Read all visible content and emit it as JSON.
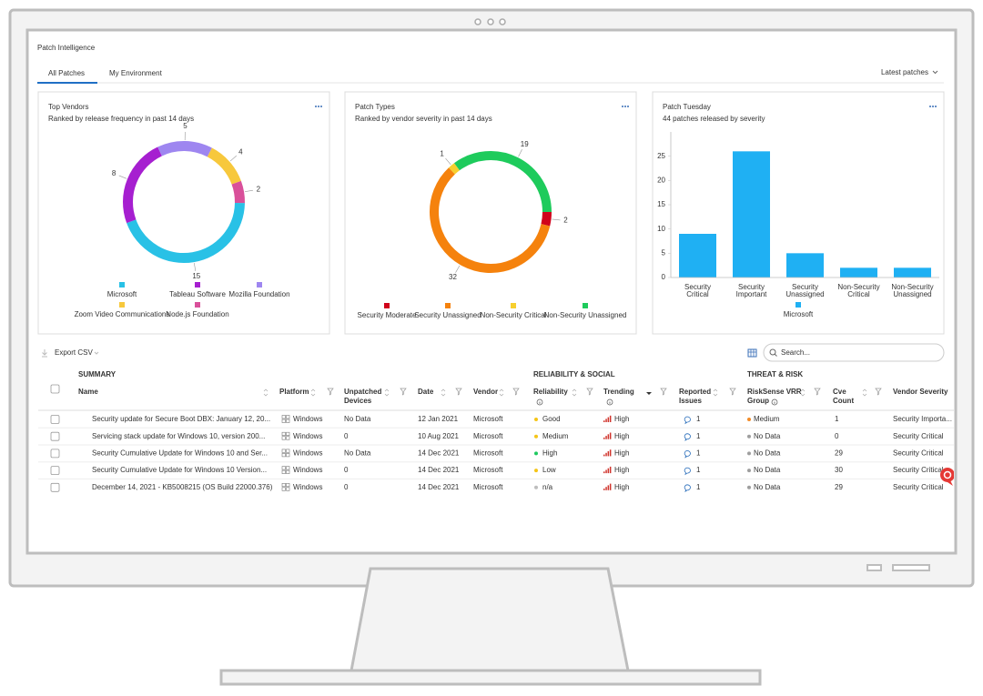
{
  "header": {
    "title": "Patch Intelligence",
    "tabs": [
      "All Patches",
      "My Environment"
    ],
    "filter": "Latest patches"
  },
  "chart_data": [
    {
      "type": "pie",
      "donut": true,
      "title": "Top Vendors",
      "subtitle": "Ranked by release frequency in past 14 days",
      "categories": [
        "Microsoft",
        "Tableau Software",
        "Mozilla Foundation",
        "Zoom Video Communications",
        "Node.js Foundation"
      ],
      "values": [
        15,
        8,
        5,
        4,
        2
      ],
      "colors": [
        "#29c1e6",
        "#a61fd0",
        "#9e86f0",
        "#f7c83c",
        "#d9509a"
      ]
    },
    {
      "type": "pie",
      "donut": true,
      "title": "Patch Types",
      "subtitle": "Ranked by vendor severity in past 14 days",
      "categories": [
        "Security Moderate",
        "Security Unassigned",
        "Non-Security Critical",
        "Non-Security Unassigned"
      ],
      "values": [
        2,
        32,
        1,
        19
      ],
      "colors": [
        "#d0021b",
        "#f5820d",
        "#f7cf2e",
        "#1ecb5c"
      ]
    },
    {
      "type": "bar",
      "title": "Patch Tuesday",
      "subtitle": "44 patches released by severity",
      "categories": [
        "Security Critical",
        "Security Important",
        "Security Unassigned",
        "Non-Security Critical",
        "Non-Security Unassigned"
      ],
      "series": [
        {
          "name": "Microsoft",
          "color": "#1fb0f3",
          "values": [
            9,
            26,
            5,
            2,
            2
          ]
        }
      ],
      "ylim": [
        0,
        30
      ],
      "yticks": [
        0,
        5,
        10,
        15,
        20,
        25
      ],
      "grid": false
    }
  ],
  "toolbar": {
    "export": "Export CSV",
    "search": "Search..."
  },
  "table": {
    "groups": [
      "SUMMARY",
      "RELIABILITY & SOCIAL",
      "THREAT & RISK"
    ],
    "columns": [
      "Name",
      "Platform",
      "Unpatched Devices",
      "Date",
      "Vendor",
      "Reliability",
      "Trending",
      "Reported Issues",
      "RiskSense VRR Group",
      "Cve Count",
      "Vendor Severity"
    ],
    "rows": [
      [
        "Security update for Secure Boot DBX: January 12, 20...",
        "Windows",
        "No Data",
        "12 Jan 2021",
        "Microsoft",
        "Good",
        "High",
        1,
        "Medium",
        1,
        "Security Importa..."
      ],
      [
        "Servicing stack update for Windows 10, version 200...",
        "Windows",
        0,
        "10 Aug 2021",
        "Microsoft",
        "Medium",
        "High",
        1,
        "No Data",
        0,
        "Security Critical"
      ],
      [
        "Security Cumulative Update for Windows 10 and Ser...",
        "Windows",
        "No Data",
        "14 Dec 2021",
        "Microsoft",
        "High",
        "High",
        1,
        "No Data",
        29,
        "Security Critical"
      ],
      [
        "Security Cumulative Update for Windows 10 Version...",
        "Windows",
        0,
        "14 Dec 2021",
        "Microsoft",
        "Low",
        "High",
        1,
        "No Data",
        30,
        "Security Critical"
      ],
      [
        "December 14, 2021 - KB5008215 (OS Build 22000.376)",
        "Windows",
        0,
        "14 Dec 2021",
        "Microsoft",
        "n/a",
        "High",
        1,
        "No Data",
        29,
        "Security Critical"
      ]
    ],
    "row_dots": [
      [
        "#f5c518",
        "#f28c28"
      ],
      [
        "#f5c518",
        "#9e9e9e"
      ],
      [
        "#1ec95f",
        "#9e9e9e"
      ],
      [
        "#f5c518",
        "#9e9e9e"
      ],
      [
        "#bdbdbd",
        "#9e9e9e"
      ]
    ]
  }
}
